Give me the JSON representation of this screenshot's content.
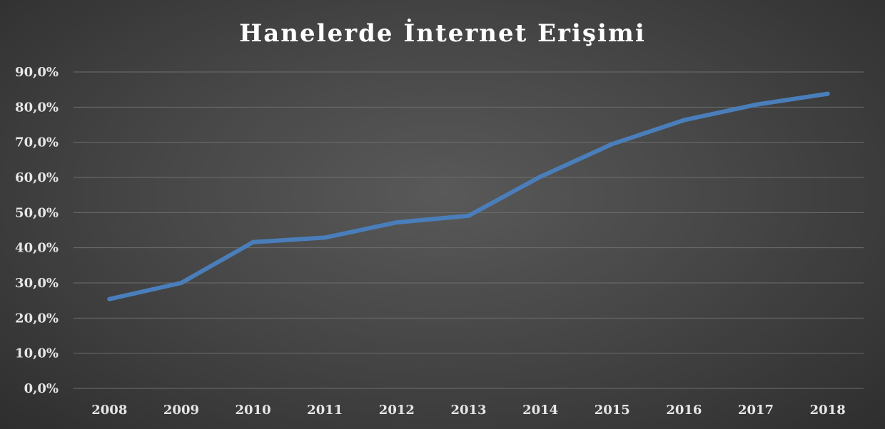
{
  "chart_data": {
    "type": "line",
    "title": "Hanelerde İnternet Erişimi",
    "categories": [
      "2008",
      "2009",
      "2010",
      "2011",
      "2012",
      "2013",
      "2014",
      "2015",
      "2016",
      "2017",
      "2018"
    ],
    "series": [
      {
        "values": [
          25.4,
          30.0,
          41.6,
          42.9,
          47.2,
          49.1,
          60.2,
          69.5,
          76.3,
          80.7,
          83.8
        ]
      }
    ],
    "ylim": [
      0,
      90
    ],
    "yticks": [
      "0,0%",
      "10,0%",
      "20,0%",
      "30,0%",
      "40,0%",
      "50,0%",
      "60,0%",
      "70,0%",
      "80,0%",
      "90,0%"
    ],
    "ytick_values": [
      0,
      10,
      20,
      30,
      40,
      50,
      60,
      70,
      80,
      90
    ],
    "grid": true,
    "legend": "none",
    "colors": {
      "line": "#4a7ebb",
      "grid": "#6e6e6e",
      "text": "#e6e6e6",
      "background": "#4a4a4a"
    }
  }
}
